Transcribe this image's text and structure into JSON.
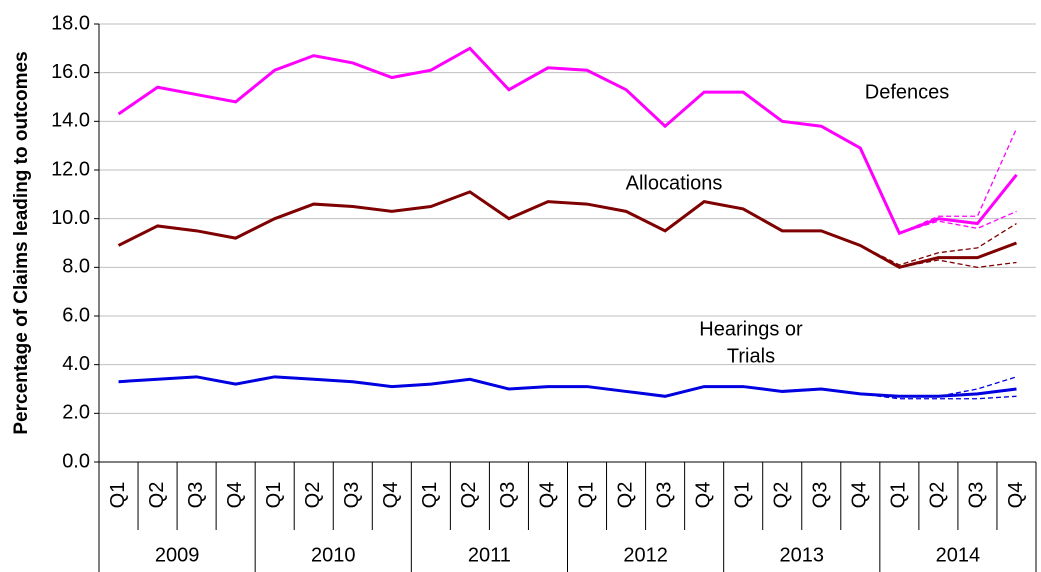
{
  "chart_data": {
    "type": "line",
    "y_label": "Percentage of Claims leading to outcomes",
    "categories": [
      "Q1",
      "Q2",
      "Q3",
      "Q4",
      "Q1",
      "Q2",
      "Q3",
      "Q4",
      "Q1",
      "Q2",
      "Q3",
      "Q4",
      "Q1",
      "Q2",
      "Q3",
      "Q4",
      "Q1",
      "Q2",
      "Q3",
      "Q4",
      "Q1",
      "Q2",
      "Q3",
      "Q4"
    ],
    "category_groups": [
      "2009",
      "2010",
      "2011",
      "2012",
      "2013",
      "2014"
    ],
    "ylim": [
      0,
      18
    ],
    "yticks": [
      {
        "value": 0,
        "label": "0.0"
      },
      {
        "value": 2,
        "label": "2.0"
      },
      {
        "value": 4,
        "label": "4.0"
      },
      {
        "value": 6,
        "label": "6.0"
      },
      {
        "value": 8,
        "label": "8.0"
      },
      {
        "value": 10,
        "label": "10.0"
      },
      {
        "value": 12,
        "label": "12.0"
      },
      {
        "value": 14,
        "label": "14.0"
      },
      {
        "value": 16,
        "label": "16.0"
      },
      {
        "value": 18,
        "label": "18.0"
      }
    ],
    "grid": true,
    "annotations": [
      {
        "lines": [
          "Defences"
        ]
      },
      {
        "lines": [
          "Allocations"
        ]
      },
      {
        "lines": [
          "Hearings or",
          "Trials"
        ]
      }
    ],
    "series": [
      {
        "color": "#ff00ff",
        "dashed": false,
        "values": [
          14.3,
          15.4,
          15.1,
          14.8,
          16.1,
          16.7,
          16.4,
          15.8,
          16.1,
          17.0,
          15.3,
          16.2,
          16.1,
          15.3,
          13.8,
          15.2,
          15.2,
          14.0,
          13.8,
          12.9,
          9.4,
          10.0,
          9.8,
          11.8
        ]
      },
      {
        "color": "#7f0000",
        "dashed": false,
        "values": [
          8.9,
          9.7,
          9.5,
          9.2,
          10.0,
          10.6,
          10.5,
          10.3,
          10.5,
          11.1,
          10.0,
          10.7,
          10.6,
          10.3,
          9.5,
          10.7,
          10.4,
          9.5,
          9.5,
          8.9,
          8.0,
          8.4,
          8.4,
          9.0
        ]
      },
      {
        "color": "#0000e0",
        "dashed": false,
        "values": [
          3.3,
          3.4,
          3.5,
          3.2,
          3.5,
          3.4,
          3.3,
          3.1,
          3.2,
          3.4,
          3.0,
          3.1,
          3.1,
          2.9,
          2.7,
          3.1,
          3.1,
          2.9,
          3.0,
          2.8,
          2.7,
          2.7,
          2.8,
          3.0
        ]
      },
      {
        "color": "#ff00ff",
        "dashed": true,
        "values": [
          null,
          null,
          null,
          null,
          null,
          null,
          null,
          null,
          null,
          null,
          null,
          null,
          null,
          null,
          null,
          null,
          null,
          null,
          null,
          12.9,
          9.4,
          10.1,
          10.1,
          13.7
        ]
      },
      {
        "color": "#ff00ff",
        "dashed": true,
        "values": [
          null,
          null,
          null,
          null,
          null,
          null,
          null,
          null,
          null,
          null,
          null,
          null,
          null,
          null,
          null,
          null,
          null,
          null,
          null,
          12.9,
          9.4,
          9.9,
          9.6,
          10.3
        ]
      },
      {
        "color": "#7f0000",
        "dashed": true,
        "values": [
          null,
          null,
          null,
          null,
          null,
          null,
          null,
          null,
          null,
          null,
          null,
          null,
          null,
          null,
          null,
          null,
          null,
          null,
          null,
          8.9,
          8.1,
          8.6,
          8.8,
          9.8
        ]
      },
      {
        "color": "#7f0000",
        "dashed": true,
        "values": [
          null,
          null,
          null,
          null,
          null,
          null,
          null,
          null,
          null,
          null,
          null,
          null,
          null,
          null,
          null,
          null,
          null,
          null,
          null,
          8.9,
          8.0,
          8.3,
          8.0,
          8.2
        ]
      },
      {
        "color": "#0000e0",
        "dashed": true,
        "values": [
          null,
          null,
          null,
          null,
          null,
          null,
          null,
          null,
          null,
          null,
          null,
          null,
          null,
          null,
          null,
          null,
          null,
          null,
          null,
          2.8,
          2.7,
          2.7,
          3.0,
          3.5
        ]
      },
      {
        "color": "#0000e0",
        "dashed": true,
        "values": [
          null,
          null,
          null,
          null,
          null,
          null,
          null,
          null,
          null,
          null,
          null,
          null,
          null,
          null,
          null,
          null,
          null,
          null,
          null,
          2.8,
          2.6,
          2.6,
          2.6,
          2.7
        ]
      }
    ]
  }
}
